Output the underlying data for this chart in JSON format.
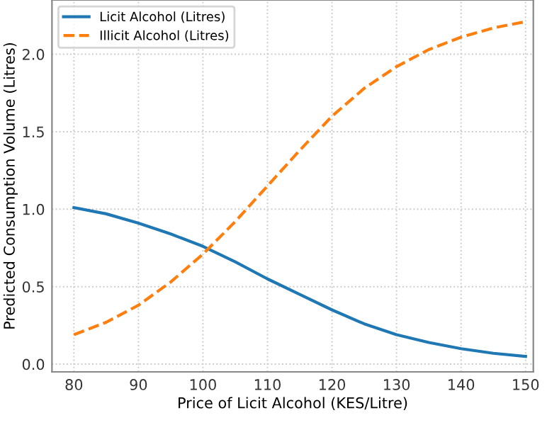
{
  "chart_data": {
    "type": "line",
    "xlabel": "Price of Licit Alcohol (KES/Litre)",
    "ylabel": "Predicted Consumption Volume (Litres)",
    "x": [
      80,
      85,
      90,
      95,
      100,
      105,
      110,
      115,
      120,
      125,
      130,
      135,
      140,
      145,
      150
    ],
    "series": [
      {
        "name": "Licit Alcohol (Litres)",
        "color": "#1f77b4",
        "line_style": "solid",
        "values": [
          1.01,
          0.97,
          0.91,
          0.84,
          0.76,
          0.66,
          0.55,
          0.45,
          0.35,
          0.26,
          0.19,
          0.14,
          0.1,
          0.07,
          0.05
        ]
      },
      {
        "name": "Illicit Alcohol (Litres)",
        "color": "#ff7f0e",
        "line_style": "dashed",
        "values": [
          0.19,
          0.27,
          0.38,
          0.53,
          0.71,
          0.92,
          1.15,
          1.38,
          1.6,
          1.78,
          1.92,
          2.03,
          2.11,
          2.17,
          2.21
        ]
      }
    ],
    "xlim": [
      76.6,
      151.2
    ],
    "ylim": [
      -0.05,
      2.35
    ],
    "xticks": [
      80,
      90,
      100,
      110,
      120,
      130,
      140,
      150
    ],
    "yticks": [
      {
        "value": 0,
        "label": "0.0"
      },
      0.5,
      {
        "value": 1,
        "label": "1.0"
      },
      1.5,
      {
        "value": 2,
        "label": "2.0"
      }
    ],
    "grid": true,
    "legend": "top left",
    "marker": "none"
  }
}
